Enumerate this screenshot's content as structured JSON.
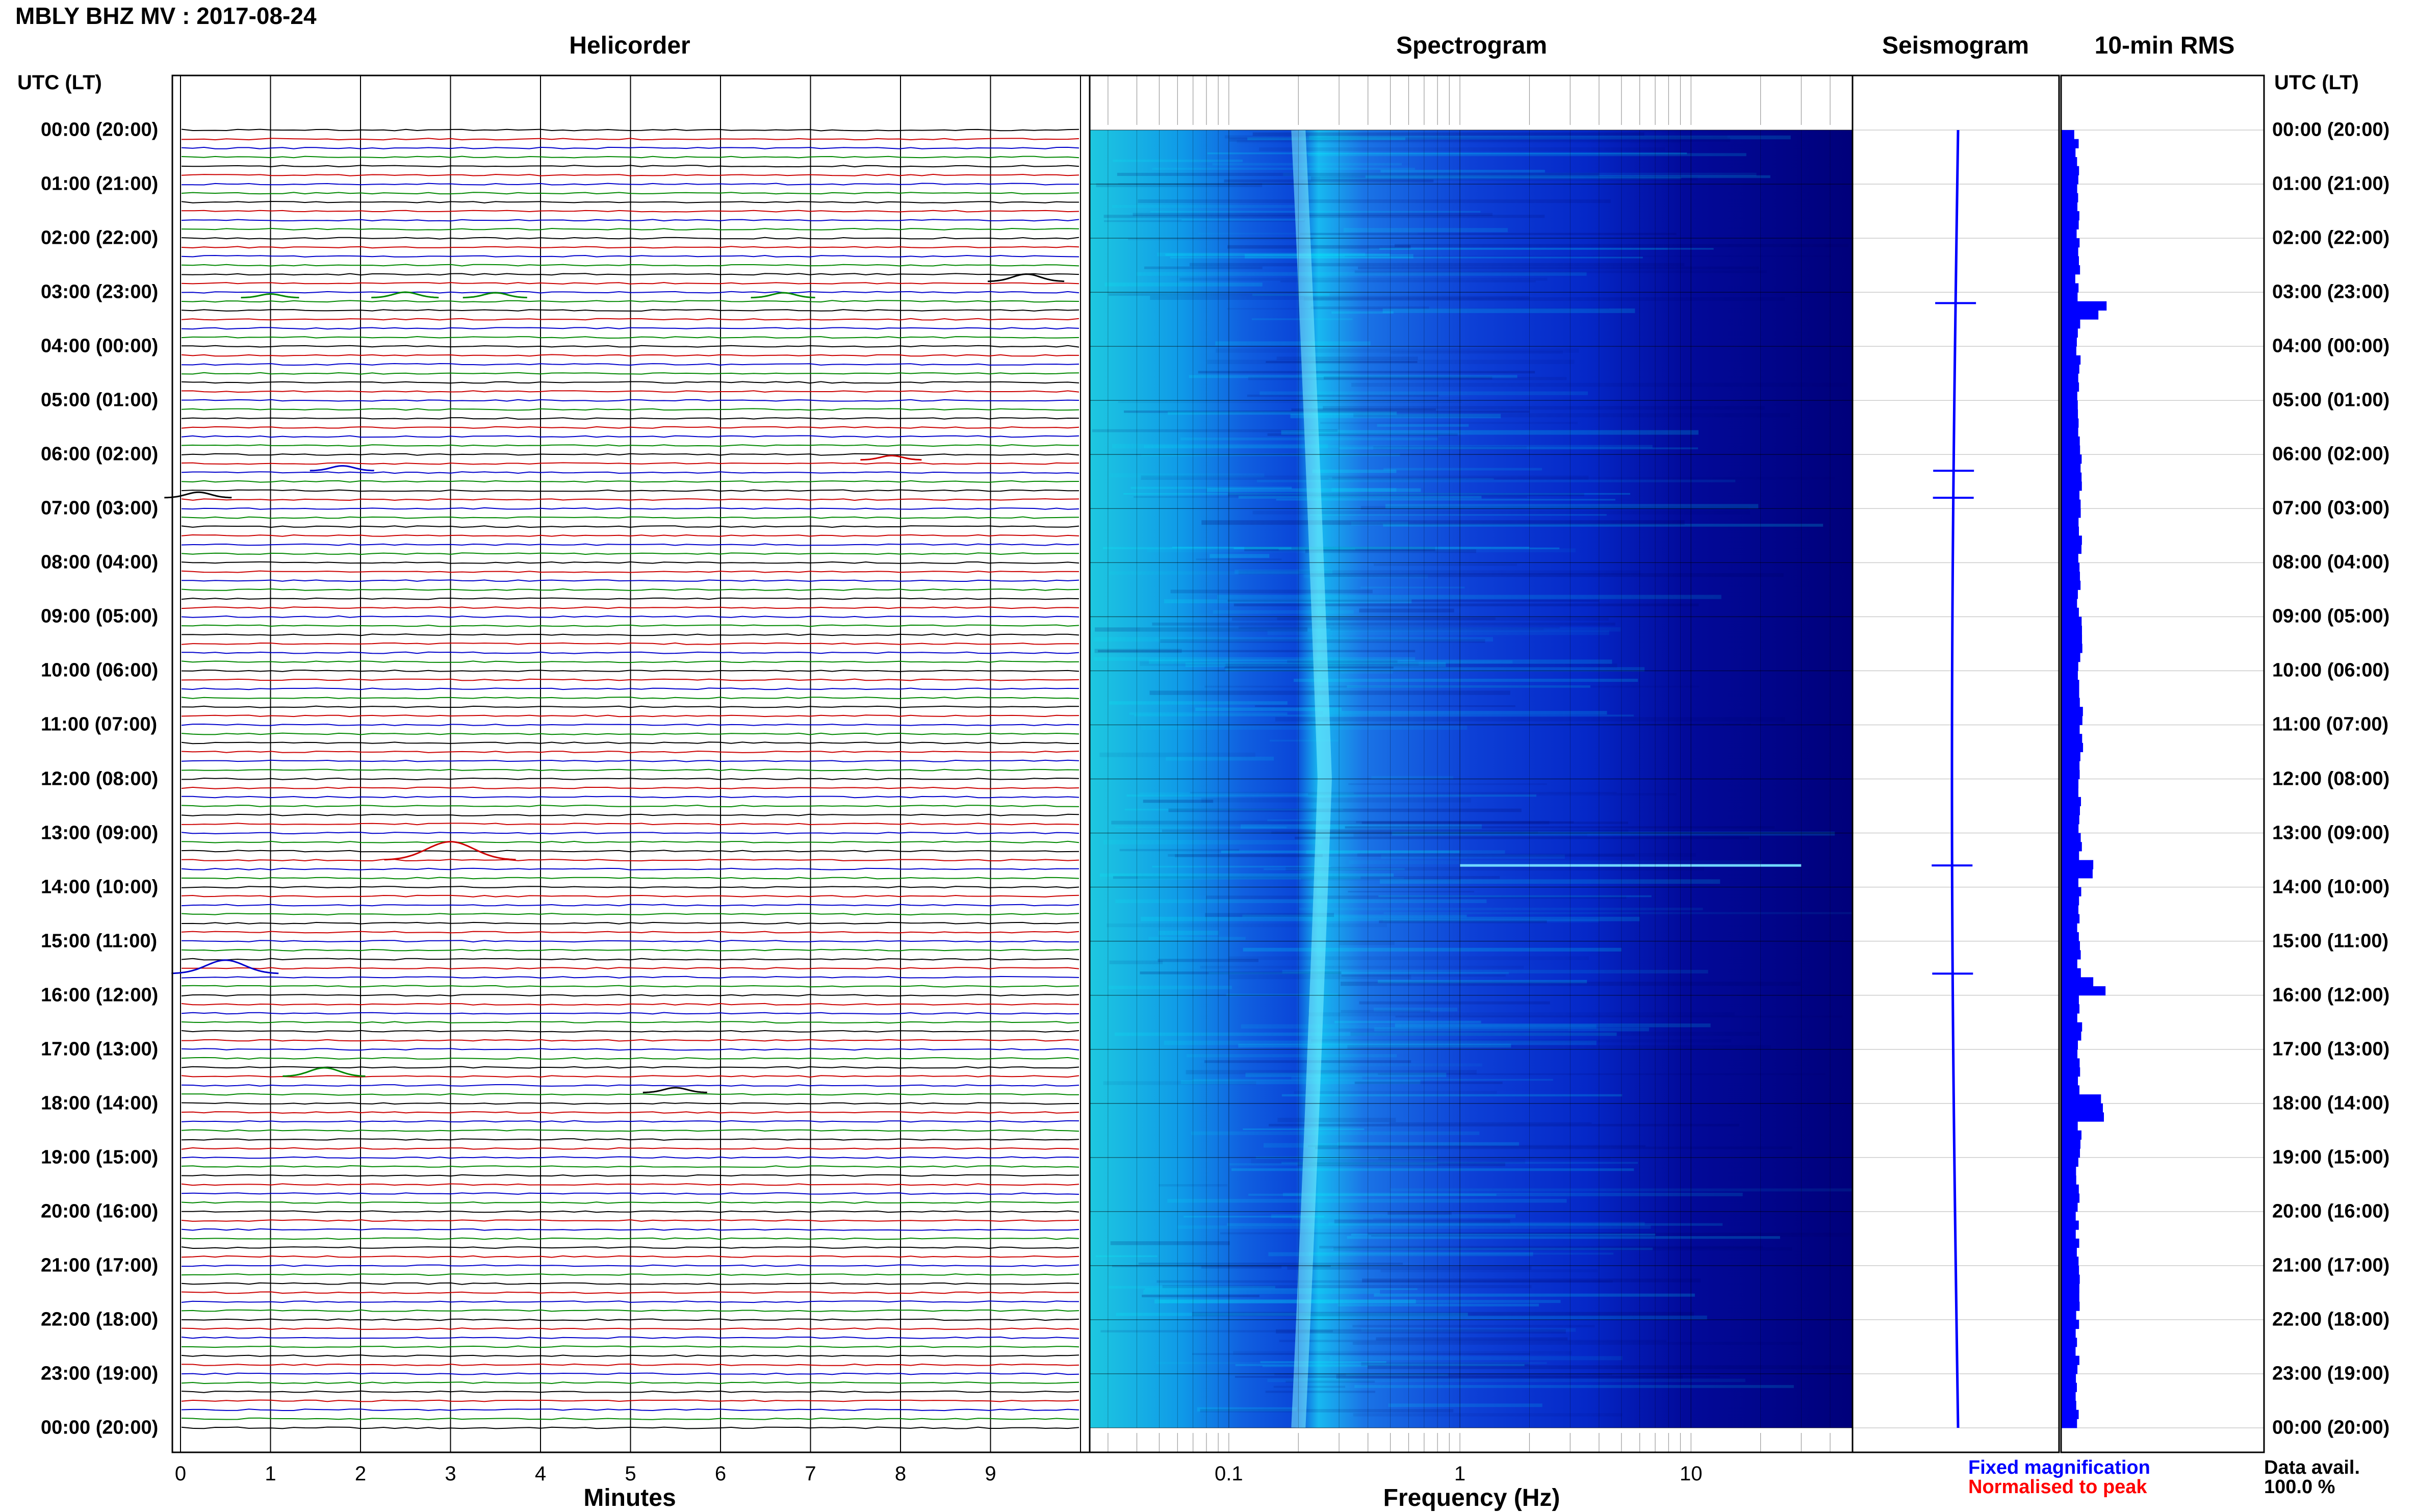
{
  "title": "MBLY BHZ MV : 2017-08-24",
  "panels": {
    "helicorder": "Helicorder",
    "spectrogram": "Spectrogram",
    "seismogram": "Seismogram",
    "rms": "10-min RMS"
  },
  "utc_header": "UTC (LT)",
  "time_labels": [
    "00:00 (20:00)",
    "01:00 (21:00)",
    "02:00 (22:00)",
    "03:00 (23:00)",
    "04:00 (00:00)",
    "05:00 (01:00)",
    "06:00 (02:00)",
    "07:00 (03:00)",
    "08:00 (04:00)",
    "09:00 (05:00)",
    "10:00 (06:00)",
    "11:00 (07:00)",
    "12:00 (08:00)",
    "13:00 (09:00)",
    "14:00 (10:00)",
    "15:00 (11:00)",
    "16:00 (12:00)",
    "17:00 (13:00)",
    "18:00 (14:00)",
    "19:00 (15:00)",
    "20:00 (16:00)",
    "21:00 (17:00)",
    "22:00 (18:00)",
    "23:00 (19:00)",
    "00:00 (20:00)"
  ],
  "helicorder_ticks": [
    "0",
    "1",
    "2",
    "3",
    "4",
    "5",
    "6",
    "7",
    "8",
    "9"
  ],
  "helicorder_xlabel": "Minutes",
  "spectrogram_ticks": [
    "0.1",
    "1",
    "10"
  ],
  "spectrogram_xlabel": "Frequency (Hz)",
  "legend": {
    "fixed": "Fixed magnification",
    "normalised": "Normalised to peak",
    "data_avail_label": "Data avail.",
    "data_avail_value": "100.0 %"
  },
  "colors": {
    "trace_cycle": [
      "#000000",
      "#cc0000",
      "#0000cc",
      "#008800"
    ],
    "fixed": "#0000ff",
    "normalised": "#ff0000",
    "spectrogram_low": "#000080",
    "spectrogram_high": "#00ffff"
  },
  "chart_data": [
    {
      "type": "line",
      "name": "helicorder",
      "title": "Helicorder",
      "xlabel": "Minutes",
      "ylabel": "UTC (LT)",
      "xlim": [
        0,
        10
      ],
      "ylim_hours": [
        0,
        24
      ],
      "rows_per_hour": 6,
      "events": [
        {
          "hour": 2.8,
          "minute": 9.4,
          "amp": 1.2,
          "color": "#000000"
        },
        {
          "hour": 3.1,
          "minute": 1.0,
          "amp": 0.6,
          "color": "#008800"
        },
        {
          "hour": 3.1,
          "minute": 2.5,
          "amp": 0.9,
          "color": "#008800"
        },
        {
          "hour": 3.1,
          "minute": 3.5,
          "amp": 0.8,
          "color": "#008800"
        },
        {
          "hour": 3.1,
          "minute": 6.7,
          "amp": 0.8,
          "color": "#008800"
        },
        {
          "hour": 6.1,
          "minute": 7.9,
          "amp": 0.7,
          "color": "#cc0000"
        },
        {
          "hour": 6.3,
          "minute": 1.8,
          "amp": 0.8,
          "color": "#0000cc"
        },
        {
          "hour": 6.8,
          "minute": 0.2,
          "amp": 0.9,
          "color": "#000000"
        },
        {
          "hour": 13.5,
          "minute": 3.0,
          "amp": 3.0,
          "color": "#cc0000"
        },
        {
          "hour": 15.6,
          "minute": 0.5,
          "amp": 2.2,
          "color": "#0000cc"
        },
        {
          "hour": 17.5,
          "minute": 1.6,
          "amp": 1.4,
          "color": "#008800"
        },
        {
          "hour": 17.8,
          "minute": 5.5,
          "amp": 0.8,
          "color": "#000000"
        }
      ]
    },
    {
      "type": "heatmap",
      "name": "spectrogram",
      "title": "Spectrogram",
      "xlabel": "Frequency (Hz)",
      "xscale": "log",
      "xlim": [
        0.025,
        50
      ],
      "ylim_hours": [
        0,
        24
      ],
      "bright_band_hz": [
        0.2,
        0.3
      ],
      "colormap": [
        "#000080",
        "#0000ff",
        "#00ffff"
      ]
    },
    {
      "type": "line",
      "name": "seismogram",
      "title": "Seismogram",
      "ylim_hours": [
        0,
        24
      ],
      "spikes_hours": [
        3.2,
        6.3,
        6.8,
        13.6,
        15.6
      ]
    },
    {
      "type": "bar",
      "name": "rms",
      "title": "10-min RMS",
      "ylim_hours": [
        0,
        24
      ],
      "peaks_hours": [
        3.2,
        13.6,
        15.7,
        18.0
      ],
      "baseline_relative": 0.3
    }
  ]
}
